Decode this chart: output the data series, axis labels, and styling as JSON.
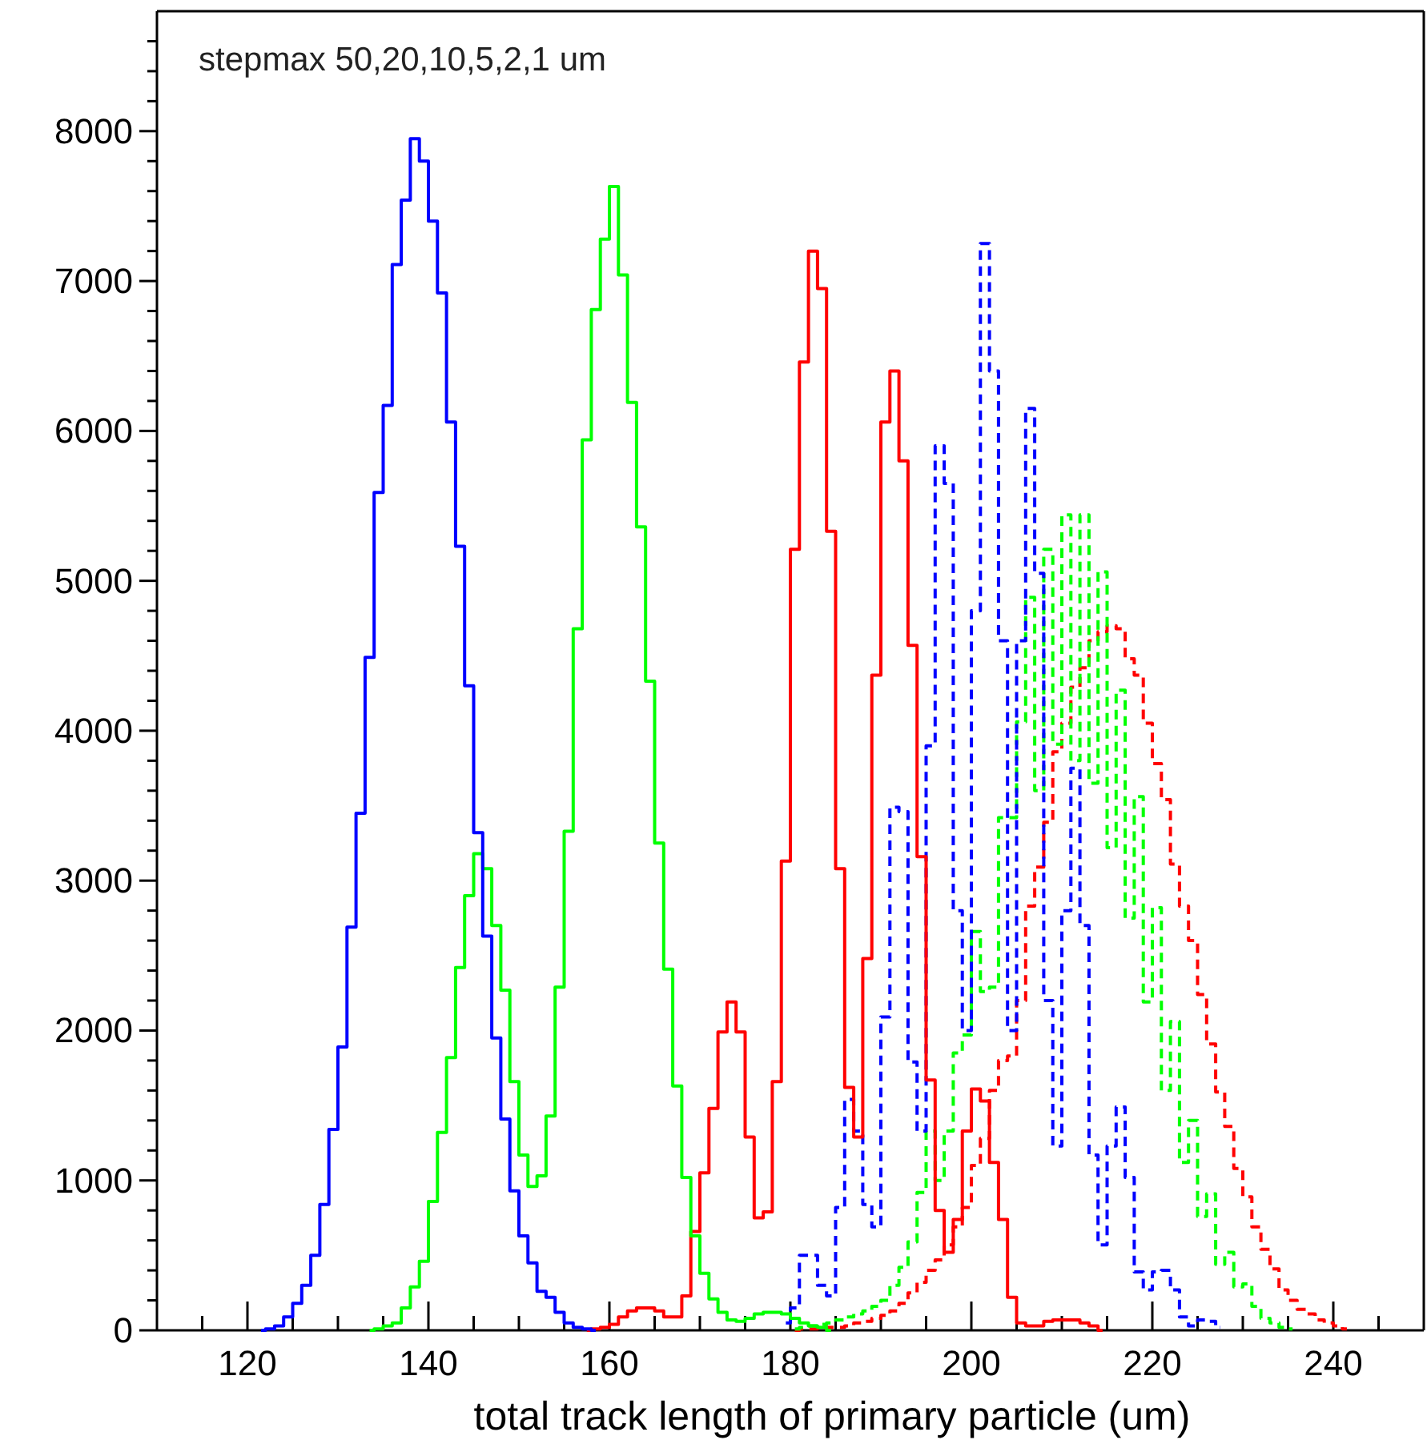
{
  "chart_data": {
    "type": "step",
    "title": "stepmax 50,20,10,5,2,1 um",
    "xlabel": "total track length of primary particle (um)",
    "xlim": [
      110,
      250
    ],
    "ylim": [
      0,
      8800
    ],
    "xticks": [
      {
        "value": 115,
        "label": null
      },
      120,
      {
        "value": 125,
        "label": null
      },
      {
        "value": 130,
        "label": null
      },
      {
        "value": 135,
        "label": null
      },
      140,
      {
        "value": 145,
        "label": null
      },
      {
        "value": 150,
        "label": null
      },
      {
        "value": 155,
        "label": null
      },
      160,
      {
        "value": 165,
        "label": null
      },
      {
        "value": 170,
        "label": null
      },
      {
        "value": 175,
        "label": null
      },
      180,
      {
        "value": 185,
        "label": null
      },
      {
        "value": 190,
        "label": null
      },
      {
        "value": 195,
        "label": null
      },
      200,
      {
        "value": 205,
        "label": null
      },
      {
        "value": 210,
        "label": null
      },
      {
        "value": 215,
        "label": null
      },
      220,
      {
        "value": 225,
        "label": null
      },
      {
        "value": 230,
        "label": null
      },
      {
        "value": 235,
        "label": null
      },
      240,
      {
        "value": 245,
        "label": null
      }
    ],
    "yticks": [
      0,
      {
        "value": 200,
        "label": null
      },
      {
        "value": 400,
        "label": null
      },
      {
        "value": 600,
        "label": null
      },
      {
        "value": 800,
        "label": null
      },
      1000,
      {
        "value": 1200,
        "label": null
      },
      {
        "value": 1400,
        "label": null
      },
      {
        "value": 1600,
        "label": null
      },
      {
        "value": 1800,
        "label": null
      },
      2000,
      {
        "value": 2200,
        "label": null
      },
      {
        "value": 2400,
        "label": null
      },
      {
        "value": 2600,
        "label": null
      },
      {
        "value": 2800,
        "label": null
      },
      3000,
      {
        "value": 3200,
        "label": null
      },
      {
        "value": 3400,
        "label": null
      },
      {
        "value": 3600,
        "label": null
      },
      {
        "value": 3800,
        "label": null
      },
      4000,
      {
        "value": 4200,
        "label": null
      },
      {
        "value": 4400,
        "label": null
      },
      {
        "value": 4600,
        "label": null
      },
      {
        "value": 4800,
        "label": null
      },
      5000,
      {
        "value": 5200,
        "label": null
      },
      {
        "value": 5400,
        "label": null
      },
      {
        "value": 5600,
        "label": null
      },
      {
        "value": 5800,
        "label": null
      },
      6000,
      {
        "value": 6200,
        "label": null
      },
      {
        "value": 6400,
        "label": null
      },
      {
        "value": 6600,
        "label": null
      },
      {
        "value": 6800,
        "label": null
      },
      7000,
      {
        "value": 7200,
        "label": null
      },
      {
        "value": 7400,
        "label": null
      },
      {
        "value": 7600,
        "label": null
      },
      {
        "value": 7800,
        "label": null
      },
      8000,
      {
        "value": 8200,
        "label": null
      },
      {
        "value": 8400,
        "label": null
      },
      {
        "value": 8600,
        "label": null
      }
    ],
    "series": [
      {
        "color": "#0000ff",
        "line_style": "solid",
        "x": [
          121.5,
          122.5,
          123.5,
          124.5,
          125.5,
          126.5,
          127.5,
          128.5,
          129.5,
          130.5,
          131.5,
          132.5,
          133.5,
          134.5,
          135.5,
          136.5,
          137.5,
          138.5,
          139.5,
          140.5,
          141.5,
          142.5,
          143.5,
          144.5,
          145.5,
          146.5,
          147.5,
          148.5,
          149.5,
          150.5,
          151.5,
          152.5,
          153.5,
          154.5,
          155.5,
          156.5,
          157.5,
          158.5
        ],
        "values": [
          0,
          10,
          30,
          90,
          180,
          300,
          500,
          840,
          1340,
          1890,
          2690,
          3450,
          4490,
          5590,
          6170,
          7110,
          7540,
          7950,
          7800,
          7400,
          6920,
          6060,
          5230,
          4300,
          3320,
          2630,
          1950,
          1410,
          930,
          630,
          450,
          260,
          220,
          120,
          50,
          20,
          10,
          0
        ]
      },
      {
        "color": "#00ff00",
        "line_style": "solid",
        "x": [
          133.5,
          134.5,
          135.5,
          136.5,
          137.5,
          138.5,
          139.5,
          140.5,
          141.5,
          142.5,
          143.5,
          144.5,
          145.5,
          146.5,
          147.5,
          148.5,
          149.5,
          150.5,
          151.5,
          152.5,
          153.5,
          154.5,
          155.5,
          156.5,
          157.5,
          158.5,
          159.5,
          160.5,
          161.5,
          162.5,
          163.5,
          164.5,
          165.5,
          166.5,
          167.5,
          168.5,
          169.5,
          170.5,
          171.5,
          172.5,
          173.5,
          174.5,
          175.5,
          176.5,
          177.5,
          178.5,
          179.5,
          180.5,
          181.5,
          182.5,
          183.5,
          184.5
        ],
        "values": [
          0,
          10,
          30,
          50,
          150,
          290,
          460,
          860,
          1320,
          1820,
          2420,
          2900,
          3180,
          3080,
          2700,
          2270,
          1660,
          1170,
          960,
          1030,
          1430,
          2290,
          3330,
          4680,
          5940,
          6810,
          7280,
          7630,
          7040,
          6190,
          5360,
          4330,
          3250,
          2410,
          1630,
          1020,
          630,
          380,
          210,
          120,
          70,
          60,
          80,
          110,
          120,
          120,
          110,
          80,
          50,
          30,
          20,
          0
        ]
      },
      {
        "color": "#ff0000",
        "line_style": "solid",
        "x": [
          157.5,
          158.5,
          159.5,
          160.5,
          161.5,
          162.5,
          163.5,
          164.5,
          165.5,
          166.5,
          167.5,
          168.5,
          169.5,
          170.5,
          171.5,
          172.5,
          173.5,
          174.5,
          175.5,
          176.5,
          177.5,
          178.5,
          179.5,
          180.5,
          181.5,
          182.5,
          183.5,
          184.5,
          185.5,
          186.5,
          187.5,
          188.5,
          189.5,
          190.5,
          191.5,
          192.5,
          193.5,
          194.5,
          195.5,
          196.5,
          197.5,
          198.5,
          199.5,
          200.5,
          201.5,
          202.5,
          203.5,
          204.5,
          205.5,
          206.5,
          207.5,
          208.5,
          209.5,
          210.5,
          211.5,
          212.5,
          213.5,
          214.5
        ],
        "values": [
          0,
          10,
          20,
          40,
          90,
          130,
          150,
          150,
          130,
          90,
          90,
          230,
          660,
          1050,
          1480,
          1990,
          2190,
          1990,
          1290,
          750,
          790,
          1660,
          3130,
          5210,
          6460,
          7200,
          6950,
          5330,
          3080,
          1620,
          1290,
          2480,
          4370,
          6060,
          6400,
          5800,
          4570,
          3160,
          1670,
          800,
          520,
          740,
          1330,
          1610,
          1530,
          1120,
          740,
          220,
          50,
          30,
          30,
          60,
          70,
          70,
          70,
          50,
          30,
          0
        ]
      },
      {
        "color": "#0000ff",
        "line_style": "dashed",
        "x": [
          179.5,
          180.5,
          181.5,
          182.5,
          183.5,
          184.5,
          185.5,
          186.5,
          187.5,
          188.5,
          189.5,
          190.5,
          191.5,
          192.5,
          193.5,
          194.5,
          195.5,
          196.5,
          197.5,
          198.5,
          199.5,
          200.5,
          201.5,
          202.5,
          203.5,
          204.5,
          205.5,
          206.5,
          207.5,
          208.5,
          209.5,
          210.5,
          211.5,
          212.5,
          213.5,
          214.5,
          215.5,
          216.5,
          217.5,
          218.5,
          219.5,
          220.5,
          221.5,
          222.5,
          223.5,
          224.5,
          225.5,
          226.5,
          227.5
        ],
        "values": [
          50,
          150,
          500,
          500,
          300,
          230,
          820,
          1540,
          1330,
          840,
          690,
          2090,
          3490,
          3460,
          1790,
          1330,
          3900,
          5900,
          5650,
          2800,
          2000,
          4800,
          7250,
          6400,
          4600,
          2000,
          4600,
          6150,
          5050,
          2200,
          1230,
          2800,
          3750,
          2700,
          1170,
          570,
          1230,
          1490,
          1020,
          390,
          270,
          390,
          400,
          270,
          90,
          30,
          70,
          60,
          20
        ]
      },
      {
        "color": "#00ff00",
        "line_style": "dashed",
        "x": [
          180.5,
          181.5,
          182.5,
          183.5,
          184.5,
          185.5,
          186.5,
          187.5,
          188.5,
          189.5,
          190.5,
          191.5,
          192.5,
          193.5,
          194.5,
          195.5,
          196.5,
          197.5,
          198.5,
          199.5,
          200.5,
          201.5,
          202.5,
          203.5,
          204.5,
          205.5,
          206.5,
          207.5,
          208.5,
          209.5,
          210.5,
          211.5,
          212.5,
          213.5,
          214.5,
          215.5,
          216.5,
          217.5,
          218.5,
          219.5,
          220.5,
          221.5,
          222.5,
          223.5,
          224.5,
          225.5,
          226.5,
          227.5,
          228.5,
          229.5,
          230.5,
          231.5,
          232.5,
          233.5,
          234.5,
          235.5
        ],
        "values": [
          10,
          20,
          30,
          40,
          50,
          70,
          90,
          110,
          130,
          160,
          200,
          300,
          420,
          590,
          920,
          1330,
          1000,
          1330,
          1850,
          1970,
          2660,
          2260,
          2290,
          3420,
          3420,
          4060,
          4890,
          3600,
          5210,
          3910,
          5440,
          3800,
          5440,
          3650,
          5060,
          3220,
          4270,
          2750,
          3560,
          2190,
          2820,
          1600,
          2060,
          1120,
          1400,
          760,
          910,
          440,
          520,
          290,
          310,
          160,
          80,
          50,
          20,
          10
        ]
      },
      {
        "color": "#ff0000",
        "line_style": "dashed",
        "x": [
          180.5,
          181.5,
          182.5,
          183.5,
          184.5,
          185.5,
          186.5,
          187.5,
          188.5,
          189.5,
          190.5,
          191.5,
          192.5,
          193.5,
          194.5,
          195.5,
          196.5,
          197.5,
          198.5,
          199.5,
          200.5,
          201.5,
          202.5,
          203.5,
          204.5,
          205.5,
          206.5,
          207.5,
          208.5,
          209.5,
          210.5,
          211.5,
          212.5,
          213.5,
          214.5,
          215.5,
          216.5,
          217.5,
          218.5,
          219.5,
          220.5,
          221.5,
          222.5,
          223.5,
          224.5,
          225.5,
          226.5,
          227.5,
          228.5,
          229.5,
          230.5,
          231.5,
          232.5,
          233.5,
          234.5,
          235.5,
          236.5,
          237.5,
          238.5,
          239.5,
          240.5,
          241.5
        ],
        "values": [
          0,
          10,
          10,
          20,
          20,
          20,
          30,
          50,
          60,
          80,
          100,
          130,
          180,
          250,
          320,
          400,
          470,
          570,
          690,
          820,
          1100,
          1280,
          1600,
          1800,
          1830,
          2200,
          2830,
          3090,
          3390,
          3860,
          4050,
          4290,
          4420,
          4600,
          4660,
          4700,
          4680,
          4480,
          4370,
          4050,
          3780,
          3540,
          3110,
          2830,
          2600,
          2240,
          1910,
          1590,
          1360,
          1080,
          890,
          690,
          540,
          410,
          270,
          200,
          140,
          110,
          70,
          50,
          30,
          10
        ]
      }
    ]
  }
}
